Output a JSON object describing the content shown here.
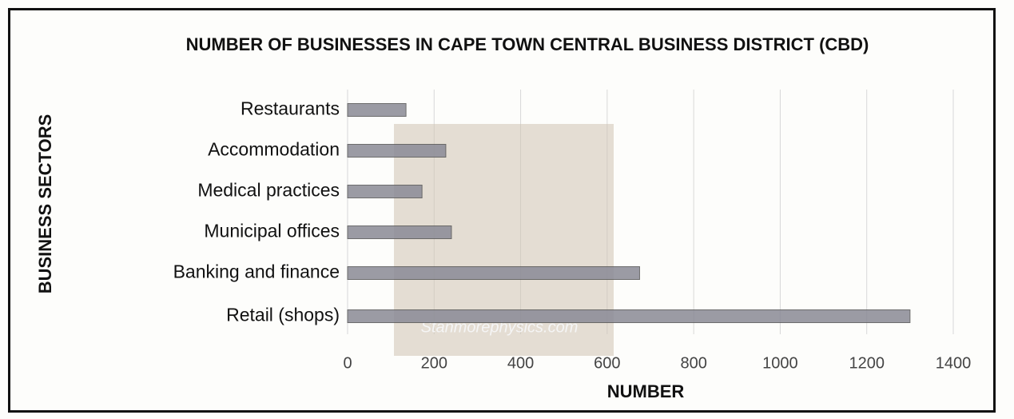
{
  "chart_data": {
    "type": "hbar",
    "title": "NUMBER OF BUSINESSES IN CAPE TOWN CENTRAL BUSINESS DISTRICT (CBD)",
    "x_label": "NUMBER",
    "y_label": "BUSINESS SECTORS",
    "categories": [
      "Restaurants",
      "Accommodation",
      "Medical practices",
      "Municipal offices",
      "Banking and finance",
      "Retail (shops)"
    ],
    "values": [
      135,
      227,
      172,
      240,
      675,
      1300
    ],
    "color": "#8a8a96",
    "xlim": [
      0,
      1400
    ],
    "xticks": [
      0,
      200,
      400,
      600,
      800,
      1000,
      1200,
      1400
    ],
    "grid": true,
    "watermark": "Stanmorephysics.com"
  }
}
